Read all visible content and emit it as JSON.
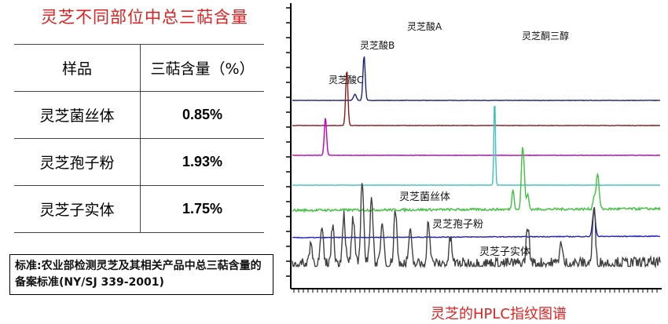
{
  "left_title": "灵芝不同部位中总三萜含量",
  "table": {
    "headers": [
      "样品",
      "三萜含量（%）"
    ],
    "rows": [
      {
        "sample": "灵芝菌丝体",
        "value": "0.85%"
      },
      {
        "sample": "灵芝孢子粉",
        "value": "1.93%"
      },
      {
        "sample": "灵芝子实体",
        "value": "1.75%"
      }
    ]
  },
  "standard_note": "标准:农业部检测灵芝及其相关产品中总三萜含量的备案标准(NY/SJ 339-2001)",
  "chart_caption": "灵芝的HPLC指纹图谱",
  "chart_data": {
    "type": "line",
    "title": "",
    "traces": [
      {
        "color": "#1a237e",
        "peaks": [
          {
            "x": 0.195,
            "h": 0.45,
            "w": 0.003
          },
          {
            "x": 0.17,
            "h": 0.06,
            "w": 0.004
          }
        ],
        "noise": 0.002
      },
      {
        "color": "#8b1a1a",
        "peaks": [
          {
            "x": 0.148,
            "h": 0.56,
            "w": 0.003
          }
        ],
        "noise": 0.002
      },
      {
        "color": "#c000c0",
        "peaks": [
          {
            "x": 0.09,
            "h": 0.38,
            "w": 0.003
          }
        ],
        "noise": 0.002
      },
      {
        "color": "#40c0c0",
        "peaks": [
          {
            "x": 0.55,
            "h": 0.9,
            "w": 0.002
          }
        ],
        "noise": 0.002
      },
      {
        "color": "#40c040",
        "peaks": [
          {
            "x": 0.625,
            "h": 0.52,
            "w": 0.003
          },
          {
            "x": 0.6,
            "h": 0.2,
            "w": 0.003
          },
          {
            "x": 0.63,
            "h": 0.32,
            "w": 0.003
          },
          {
            "x": 0.64,
            "h": 0.15,
            "w": 0.003
          },
          {
            "x": 0.83,
            "h": 0.35,
            "w": 0.004
          },
          {
            "x": 0.82,
            "h": 0.12,
            "w": 0.003
          }
        ],
        "noise": 0.012
      },
      {
        "color": "#2020c0",
        "peaks": [
          {
            "x": 0.82,
            "h": 0.26,
            "w": 0.004
          }
        ],
        "noise": 0.004
      },
      {
        "color": "#404040",
        "peaks": [
          {
            "x": 0.05,
            "h": 0.22,
            "w": 0.004
          },
          {
            "x": 0.08,
            "h": 0.34,
            "w": 0.004
          },
          {
            "x": 0.11,
            "h": 0.4,
            "w": 0.004
          },
          {
            "x": 0.14,
            "h": 0.5,
            "w": 0.004
          },
          {
            "x": 0.165,
            "h": 0.45,
            "w": 0.004
          },
          {
            "x": 0.19,
            "h": 0.85,
            "w": 0.004
          },
          {
            "x": 0.215,
            "h": 0.7,
            "w": 0.004
          },
          {
            "x": 0.245,
            "h": 0.42,
            "w": 0.004
          },
          {
            "x": 0.28,
            "h": 0.55,
            "w": 0.004
          },
          {
            "x": 0.32,
            "h": 0.32,
            "w": 0.004
          },
          {
            "x": 0.37,
            "h": 0.42,
            "w": 0.004
          },
          {
            "x": 0.43,
            "h": 0.25,
            "w": 0.004
          },
          {
            "x": 0.64,
            "h": 0.38,
            "w": 0.004
          },
          {
            "x": 0.73,
            "h": 0.2,
            "w": 0.004
          },
          {
            "x": 0.82,
            "h": 0.55,
            "w": 0.004
          }
        ],
        "noise": 0.06
      }
    ],
    "peak_labels": [
      {
        "text": "灵芝酸A",
        "x": 0.25,
        "trace": 0
      },
      {
        "text": "灵芝酸B",
        "x": 0.15,
        "trace": 0
      },
      {
        "text": "灵芝酸C",
        "x": 0.08,
        "trace": 2
      },
      {
        "text": "灵芝酮三醇",
        "x": 0.58,
        "trace": 3
      }
    ],
    "trace_labels": [
      {
        "text": "灵芝菌丝体",
        "x": 0.25,
        "trace": 4
      },
      {
        "text": "灵芝孢子粉",
        "x": 0.3,
        "trace": 5
      },
      {
        "text": "灵芝子实体",
        "x": 0.4,
        "trace": 6
      }
    ]
  }
}
